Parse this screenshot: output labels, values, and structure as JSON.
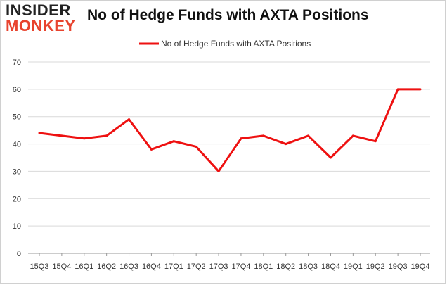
{
  "logo": {
    "top": "INSIDER",
    "bottom": "MONKEY"
  },
  "chart_data": {
    "type": "line",
    "title": "No of Hedge Funds with AXTA Positions",
    "legend": {
      "position": "top-center"
    },
    "xlabel": "",
    "ylabel": "",
    "ylim": [
      0,
      70
    ],
    "yticks": [
      0,
      10,
      20,
      30,
      40,
      50,
      60,
      70
    ],
    "grid": true,
    "categories": [
      "15Q3",
      "15Q4",
      "16Q1",
      "16Q2",
      "16Q3",
      "16Q4",
      "17Q1",
      "17Q2",
      "17Q3",
      "17Q4",
      "18Q1",
      "18Q2",
      "18Q3",
      "18Q4",
      "19Q1",
      "19Q2",
      "19Q3",
      "19Q4"
    ],
    "series": [
      {
        "name": "No of Hedge Funds with AXTA Positions",
        "color": "#ee1111",
        "values": [
          44,
          43,
          42,
          43,
          49,
          38,
          41,
          39,
          30,
          42,
          43,
          40,
          43,
          35,
          43,
          41,
          60,
          60
        ]
      }
    ]
  }
}
